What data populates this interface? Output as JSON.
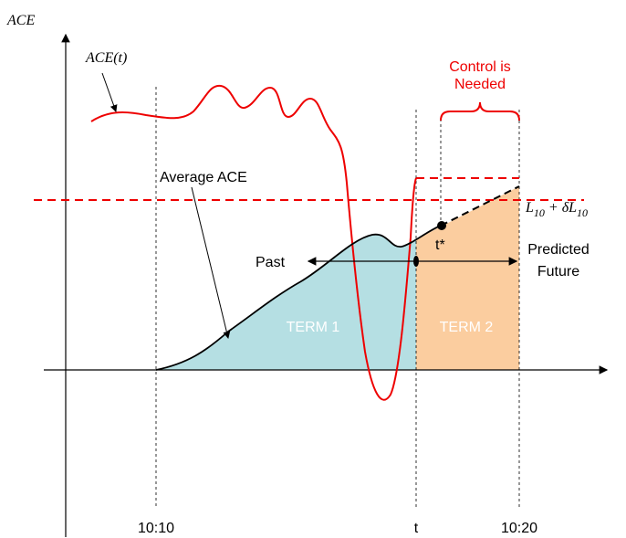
{
  "labels": {
    "y_axis": "ACE",
    "ace_t": "ACE(t)",
    "control": [
      "Control is",
      "Needed"
    ],
    "average": "Average ACE",
    "threshold": [
      "L",
      "10",
      " + δL",
      "10"
    ],
    "t_star": "t*",
    "past": "Past",
    "predicted": [
      "Predicted",
      "Future"
    ],
    "term1": "TERM 1",
    "term2": "TERM 2",
    "x_ticks": [
      "10:10",
      "t",
      "10:20"
    ]
  }
}
